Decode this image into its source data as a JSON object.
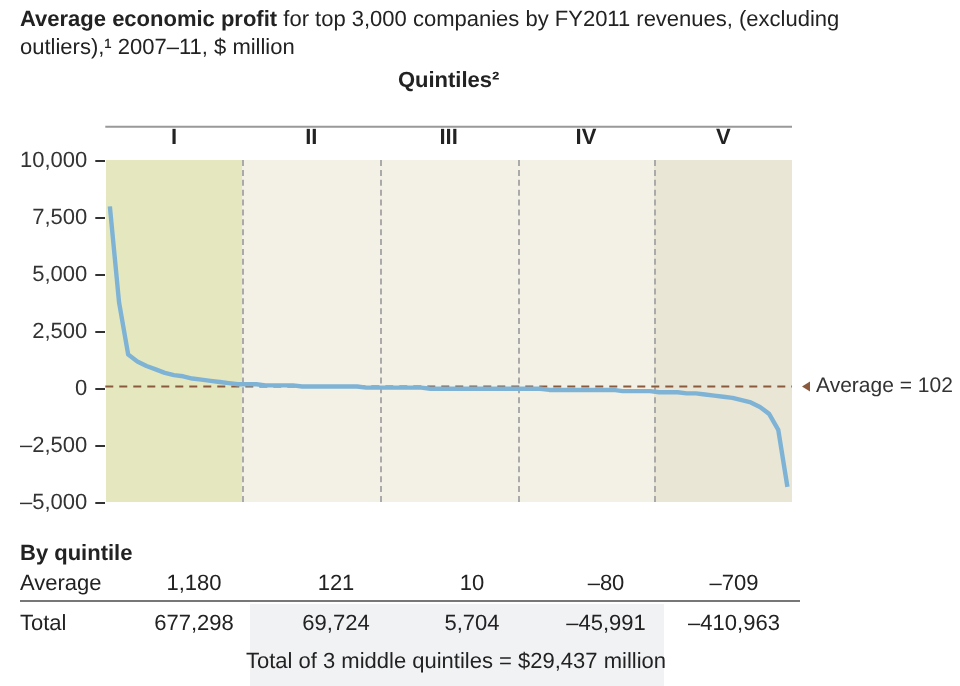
{
  "chart_data": {
    "type": "line",
    "title": "Average economic profit",
    "subtitle": "for top 3,000 companies by FY2011 revenues, (excluding outliers),¹ 2007–11, $ million",
    "xlabel": "Quintiles²",
    "categories": [
      null,
      null,
      null,
      null,
      null,
      null,
      null,
      "I",
      null,
      null,
      null,
      null,
      null,
      null,
      null,
      null,
      null,
      null,
      null,
      null,
      null,
      null,
      "II",
      null,
      null,
      null,
      null,
      null,
      null,
      null,
      null,
      null,
      null,
      null,
      null,
      null,
      null,
      "III",
      null,
      null,
      null,
      null,
      null,
      null,
      null,
      null,
      null,
      null,
      null,
      null,
      null,
      null,
      "IV",
      null,
      null,
      null,
      null,
      null,
      null,
      null,
      null,
      null,
      null,
      null,
      null,
      null,
      null,
      "V",
      null,
      null,
      null,
      null,
      null,
      null,
      null
    ],
    "ylim": [
      -5000,
      10000
    ],
    "yticks": [
      {
        "value": -5000,
        "label": "–5,000"
      },
      {
        "value": -2500,
        "label": "–2,500"
      },
      0,
      {
        "value": 2500,
        "label": "2,500"
      },
      {
        "value": 5000,
        "label": "5,000"
      },
      {
        "value": 7500,
        "label": "7,500"
      },
      {
        "value": 10000,
        "label": "10,000"
      }
    ],
    "series": [
      {
        "color": "#7fb3d5",
        "values": [
          8000,
          3800,
          1500,
          1200,
          1000,
          850,
          700,
          600,
          550,
          450,
          400,
          350,
          300,
          250,
          200,
          200,
          200,
          150,
          150,
          150,
          150,
          100,
          100,
          100,
          100,
          100,
          100,
          100,
          50,
          50,
          50,
          50,
          50,
          50,
          50,
          0,
          0,
          0,
          0,
          0,
          0,
          0,
          0,
          0,
          0,
          0,
          0,
          0,
          -50,
          -50,
          -50,
          -50,
          -50,
          -50,
          -50,
          -50,
          -100,
          -100,
          -100,
          -100,
          -150,
          -150,
          -150,
          -200,
          -200,
          -250,
          -300,
          -350,
          -400,
          -500,
          -600,
          -800,
          -1100,
          -1800,
          -4300
        ]
      }
    ],
    "ref_lines": [
      {
        "axis": "y",
        "value": 102,
        "label": "Average = 102",
        "color": "#8b5a3c",
        "line_style": "dashed"
      }
    ],
    "grid": false,
    "legend": false,
    "marker": "none",
    "annotations": [
      "By quintile",
      "Average",
      "1,180",
      "121",
      "10",
      "–80",
      "–709",
      "Total",
      "677,298",
      "69,724",
      "5,704",
      "–45,991",
      "–410,963",
      "Total of 3 middle quintiles = $29,437 million"
    ]
  }
}
